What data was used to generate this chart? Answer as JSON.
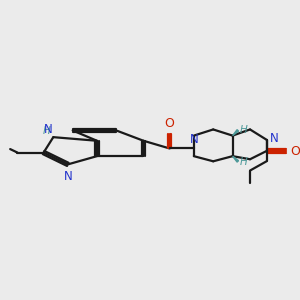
{
  "bg_color": "#ebebeb",
  "line_color": "#1a1a1a",
  "bond_lw": 1.6,
  "N_color": "#2233cc",
  "O_color": "#cc2200",
  "H_color": "#4d9999",
  "C_color": "#1a1a1a",
  "figsize": [
    3.0,
    3.0
  ],
  "dpi": 100,
  "xlim": [
    0.0,
    10.0
  ],
  "ylim": [
    0.5,
    5.8
  ]
}
